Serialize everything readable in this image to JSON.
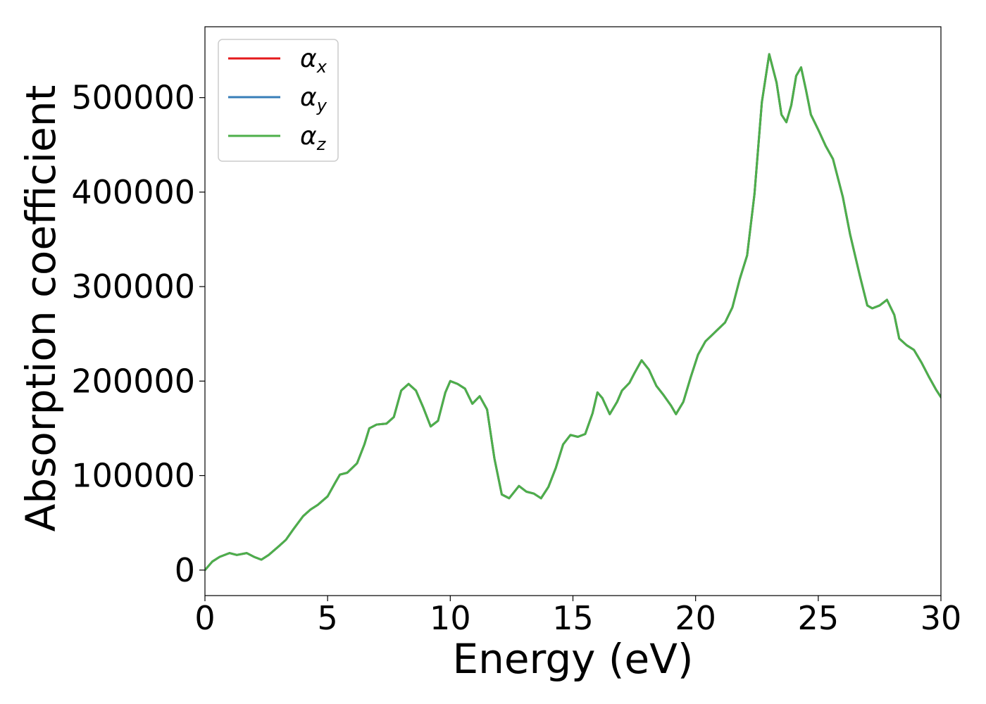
{
  "chart_data": {
    "type": "line",
    "title": "",
    "xlabel": "Energy (eV)",
    "ylabel": "Absorption coefficient",
    "xlim": [
      0,
      30
    ],
    "ylim": [
      -27000,
      575000
    ],
    "xticks": [
      0,
      5,
      10,
      15,
      20,
      25,
      30
    ],
    "xtick_labels": [
      "0",
      "5",
      "10",
      "15",
      "20",
      "25",
      "30"
    ],
    "yticks": [
      0,
      100000,
      200000,
      300000,
      400000,
      500000
    ],
    "ytick_labels": [
      "0",
      "100000",
      "200000",
      "300000",
      "400000",
      "500000"
    ],
    "grid": false,
    "legend_position": "top-left",
    "series": [
      {
        "name": "α",
        "subscript": "x",
        "color": "#e41a1c"
      },
      {
        "name": "α",
        "subscript": "y",
        "color": "#377eb8"
      },
      {
        "name": "α",
        "subscript": "z",
        "color": "#4daf4a"
      }
    ],
    "x": [
      0,
      0.3,
      0.6,
      1.0,
      1.3,
      1.7,
      2.0,
      2.3,
      2.6,
      3.0,
      3.3,
      3.6,
      4.0,
      4.3,
      4.6,
      5.0,
      5.3,
      5.5,
      5.8,
      6.2,
      6.5,
      6.7,
      7.0,
      7.4,
      7.7,
      8.0,
      8.3,
      8.6,
      8.9,
      9.2,
      9.5,
      9.8,
      10.0,
      10.3,
      10.6,
      10.9,
      11.2,
      11.5,
      11.8,
      12.1,
      12.4,
      12.8,
      13.1,
      13.4,
      13.7,
      14.0,
      14.3,
      14.6,
      14.9,
      15.2,
      15.5,
      15.8,
      16.0,
      16.2,
      16.5,
      16.8,
      17.0,
      17.3,
      17.5,
      17.8,
      18.1,
      18.4,
      18.7,
      19.0,
      19.2,
      19.5,
      19.8,
      20.1,
      20.4,
      20.8,
      21.2,
      21.5,
      21.8,
      22.1,
      22.4,
      22.7,
      23.0,
      23.3,
      23.5,
      23.7,
      23.9,
      24.1,
      24.3,
      24.5,
      24.7,
      25.0,
      25.3,
      25.6,
      26.0,
      26.3,
      26.7,
      27.0,
      27.2,
      27.5,
      27.8,
      28.1,
      28.3,
      28.6,
      28.9,
      29.2,
      29.5,
      29.8,
      30.0
    ],
    "values": [
      0,
      9000,
      14000,
      18000,
      16000,
      18000,
      14000,
      11000,
      16000,
      25000,
      32000,
      43000,
      57000,
      64000,
      69000,
      78000,
      92000,
      101000,
      103000,
      113000,
      133000,
      150000,
      154000,
      155000,
      162000,
      190000,
      197000,
      190000,
      172000,
      152000,
      158000,
      188000,
      200000,
      197000,
      192000,
      176000,
      184000,
      170000,
      118000,
      80000,
      76000,
      89000,
      83000,
      81000,
      76000,
      88000,
      108000,
      133000,
      143000,
      141000,
      144000,
      166000,
      188000,
      182000,
      165000,
      178000,
      190000,
      198000,
      208000,
      222000,
      212000,
      195000,
      185000,
      174000,
      165000,
      178000,
      204000,
      228000,
      242000,
      252000,
      262000,
      278000,
      308000,
      333000,
      398000,
      495000,
      546000,
      516000,
      482000,
      474000,
      492000,
      523000,
      532000,
      508000,
      482000,
      466000,
      449000,
      435000,
      395000,
      355000,
      311000,
      280000,
      277000,
      280000,
      286000,
      270000,
      245000,
      238000,
      233000,
      220000,
      205000,
      191000,
      183000
    ]
  }
}
